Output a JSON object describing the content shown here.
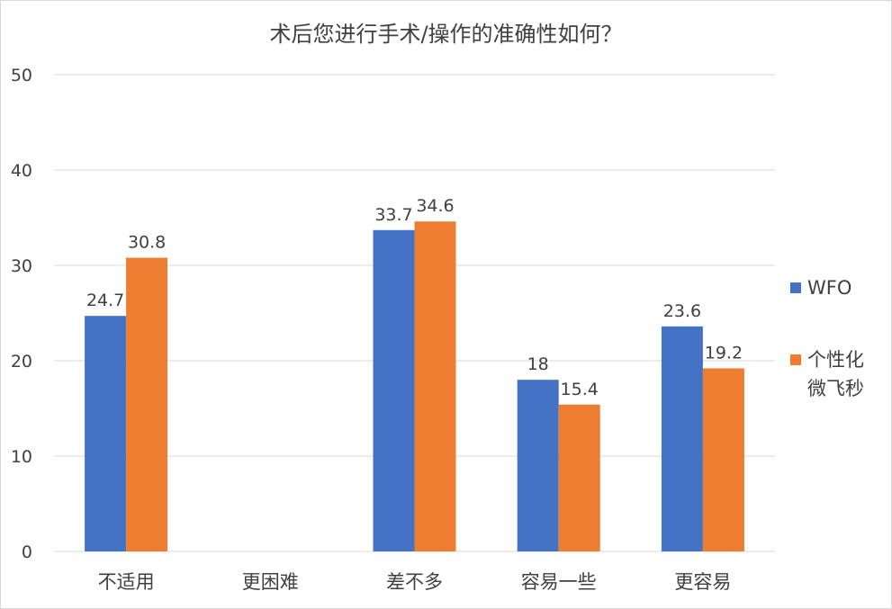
{
  "chart_data": {
    "type": "bar",
    "title": "术后您进行手术/操作的准确性如何？",
    "categories": [
      "不适用",
      "更困难",
      "差不多",
      "容易一些",
      "更容易"
    ],
    "series": [
      {
        "name": "WFO",
        "color": "#4472C4",
        "values": [
          24.7,
          null,
          33.7,
          18,
          23.6
        ],
        "labels": [
          "24.7",
          "",
          "33.7",
          "18",
          "23.6"
        ]
      },
      {
        "name": "个性化微飞秒",
        "color": "#ED7D31",
        "values": [
          30.8,
          null,
          34.6,
          15.4,
          19.2
        ],
        "labels": [
          "30.8",
          "",
          "34.6",
          "15.4",
          "19.2"
        ]
      }
    ],
    "ylim": [
      0,
      50
    ],
    "yticks": [
      0,
      10,
      20,
      30,
      40,
      50
    ],
    "grid": true,
    "legend_position": "right",
    "xlabel": "",
    "ylabel": ""
  }
}
